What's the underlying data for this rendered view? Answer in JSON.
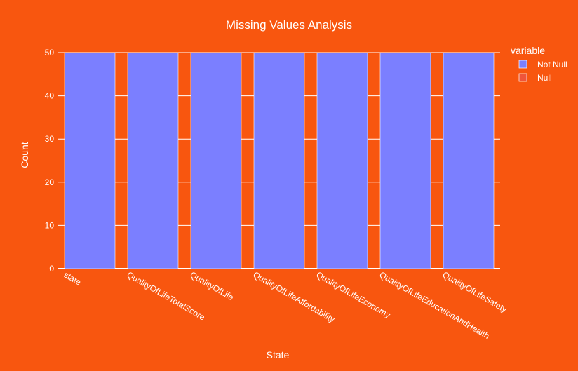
{
  "chart_data": {
    "type": "bar",
    "barmode": "stack",
    "title": "Missing Values Analysis",
    "xlabel": "State",
    "ylabel": "Count",
    "categories": [
      "state",
      "QualityOfLifeTotalScore",
      "QualityOfLife",
      "QualityOfLifeAffordability",
      "QualityOfLifeEconomy",
      "QualityOfLifeEducationAndHealth",
      "QualityOfLifeSafety"
    ],
    "series": [
      {
        "name": "Not Null",
        "values": [
          50,
          50,
          50,
          50,
          50,
          50,
          50
        ],
        "color": "#7b7fff"
      },
      {
        "name": "Null",
        "values": [
          0,
          0,
          0,
          0,
          0,
          0,
          0
        ],
        "color": "#ef553b"
      }
    ],
    "ylim": [
      0,
      50
    ],
    "yticks": [
      0,
      10,
      20,
      30,
      40,
      50
    ],
    "legend_title": "variable",
    "legend_position": "top-right",
    "grid": true,
    "colors": {
      "background": "#f8560f",
      "text": "#ffffff",
      "grid": "#ffffff"
    }
  }
}
